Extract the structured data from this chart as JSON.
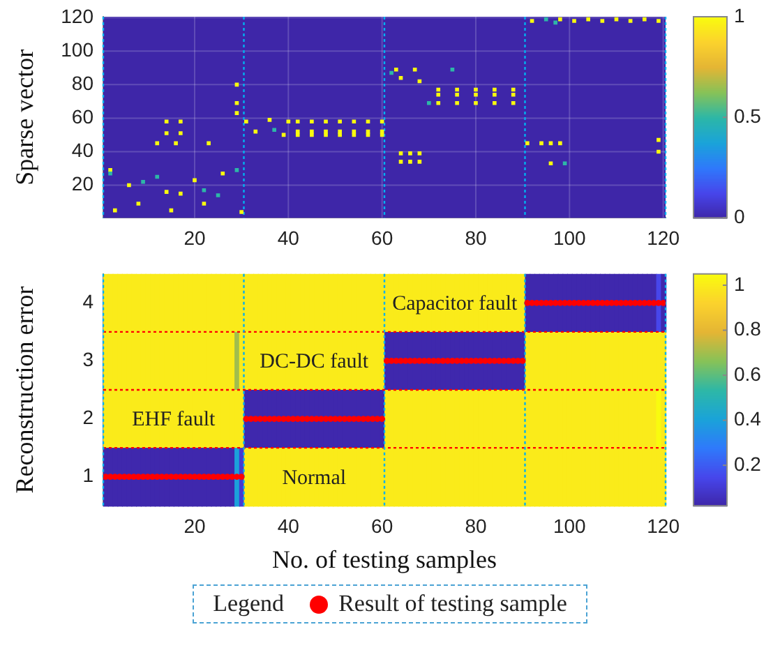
{
  "chart_data": [
    {
      "type": "scatter",
      "ylabel": "Sparse vector",
      "xlim": [
        0.5,
        120.5
      ],
      "ylim": [
        0.5,
        120.5
      ],
      "xticks": [
        20,
        40,
        60,
        80,
        100,
        120
      ],
      "yticks": [
        20,
        40,
        60,
        80,
        100,
        120
      ],
      "grid": true,
      "marker": "square",
      "clim": [
        0,
        1
      ],
      "cticks": [
        0,
        0.5,
        1
      ],
      "x": [
        14,
        17,
        14,
        17,
        12,
        16,
        23,
        29,
        29,
        29,
        2,
        2,
        6,
        9,
        12,
        14,
        17,
        20,
        22,
        26,
        29,
        3,
        8,
        15,
        22,
        30,
        25,
        31,
        33,
        36,
        37,
        39,
        40,
        42,
        45,
        48,
        51,
        54,
        57,
        60,
        42,
        45,
        48,
        51,
        54,
        57,
        60,
        42,
        45,
        48,
        51,
        54,
        57,
        60,
        63,
        67,
        64,
        68,
        75,
        62,
        64,
        66,
        68,
        64,
        66,
        68,
        72,
        76,
        80,
        84,
        88,
        72,
        76,
        80,
        84,
        88,
        70,
        72,
        76,
        80,
        84,
        88,
        92,
        95,
        98,
        101,
        104,
        107,
        110,
        113,
        116,
        119,
        97,
        91,
        94,
        96,
        98,
        96,
        99,
        119,
        119
      ],
      "values": [
        58,
        58,
        51,
        51,
        45,
        45,
        45,
        80,
        69,
        63,
        29,
        27,
        20,
        22,
        25,
        16,
        15,
        23,
        17,
        27,
        29,
        5,
        9,
        5,
        9,
        4,
        14,
        58,
        52,
        59,
        53,
        50,
        58,
        58,
        58,
        58,
        58,
        58,
        58,
        58,
        52,
        52,
        52,
        52,
        52,
        52,
        52,
        50,
        50,
        50,
        50,
        50,
        50,
        50,
        89,
        89,
        84,
        82,
        89,
        87,
        39,
        39,
        39,
        34,
        34,
        34,
        77,
        77,
        77,
        77,
        77,
        74,
        74,
        74,
        74,
        74,
        69,
        69,
        69,
        69,
        69,
        69,
        118,
        119,
        119,
        118,
        119,
        118,
        119,
        118,
        119,
        118,
        117,
        45,
        45,
        45,
        45,
        33,
        33,
        47,
        40
      ],
      "cvalues": [
        1,
        1,
        1,
        1,
        1,
        1,
        1,
        1,
        1,
        1,
        1,
        0.5,
        1,
        0.5,
        0.5,
        1,
        1,
        1,
        0.5,
        1,
        0.5,
        1,
        1,
        1,
        1,
        1,
        0.5,
        1,
        1,
        1,
        0.5,
        1,
        1,
        1,
        1,
        1,
        1,
        1,
        1,
        1,
        1,
        1,
        1,
        1,
        1,
        1,
        1,
        1,
        1,
        1,
        1,
        1,
        1,
        1,
        1,
        1,
        1,
        1,
        0.5,
        0.5,
        1,
        1,
        1,
        1,
        1,
        1,
        1,
        1,
        1,
        1,
        1,
        1,
        1,
        1,
        1,
        1,
        0.5,
        1,
        1,
        1,
        1,
        1,
        1,
        0.5,
        1,
        1,
        1,
        1,
        1,
        1,
        1,
        1,
        0.5,
        1,
        1,
        1,
        1,
        1,
        0.5,
        1,
        1
      ],
      "ref_lines": [
        {
          "axis": "x",
          "value": 0.5,
          "color": "#00b0f0",
          "line_style": "dotted"
        },
        {
          "axis": "x",
          "value": 30.5,
          "color": "#00b0f0",
          "line_style": "dotted"
        },
        {
          "axis": "x",
          "value": 60.5,
          "color": "#00b0f0",
          "line_style": "dotted"
        },
        {
          "axis": "x",
          "value": 90.5,
          "color": "#00b0f0",
          "line_style": "dotted"
        },
        {
          "axis": "x",
          "value": 120.5,
          "color": "#00b0f0",
          "line_style": "dotted"
        }
      ]
    },
    {
      "type": "heatmap",
      "xlabel": "No. of testing samples",
      "ylabel": "Reconstruction error",
      "legend_title": "Legend",
      "legend": "bottom",
      "x": [
        1,
        2,
        3,
        4,
        5,
        6,
        7,
        8,
        9,
        10,
        11,
        12,
        13,
        14,
        15,
        16,
        17,
        18,
        19,
        20,
        21,
        22,
        23,
        24,
        25,
        26,
        27,
        28,
        29,
        30,
        31,
        32,
        33,
        34,
        35,
        36,
        37,
        38,
        39,
        40,
        41,
        42,
        43,
        44,
        45,
        46,
        47,
        48,
        49,
        50,
        51,
        52,
        53,
        54,
        55,
        56,
        57,
        58,
        59,
        60,
        61,
        62,
        63,
        64,
        65,
        66,
        67,
        68,
        69,
        70,
        71,
        72,
        73,
        74,
        75,
        76,
        77,
        78,
        79,
        80,
        81,
        82,
        83,
        84,
        85,
        86,
        87,
        88,
        89,
        90,
        91,
        92,
        93,
        94,
        95,
        96,
        97,
        98,
        99,
        100,
        101,
        102,
        103,
        104,
        105,
        106,
        107,
        108,
        109,
        110,
        111,
        112,
        113,
        114,
        115,
        116,
        117,
        118,
        119,
        120
      ],
      "xlim": [
        0.5,
        120.5
      ],
      "xticks": [
        20,
        40,
        60,
        80,
        100,
        120
      ],
      "ylim": [
        0.5,
        4.5
      ],
      "yticks": [
        1,
        2,
        3,
        4
      ],
      "cells": [
        [
          1,
          1,
          1,
          1,
          1,
          1,
          1,
          1,
          1,
          1,
          1,
          1,
          1,
          1,
          1,
          1,
          1,
          1,
          1,
          1,
          1,
          1,
          1,
          1,
          1,
          1,
          1,
          1,
          1,
          1,
          1,
          1,
          1,
          1,
          1,
          1,
          1,
          1,
          1,
          1,
          1,
          1,
          1,
          1,
          1,
          1,
          1,
          1,
          1,
          1,
          1,
          1,
          1,
          1,
          1,
          1,
          1,
          1,
          1,
          1,
          1,
          1,
          1,
          1,
          1,
          1,
          1,
          1,
          1,
          1,
          1,
          1,
          1,
          1,
          1,
          1,
          1,
          1,
          1,
          1,
          1,
          1,
          1,
          1,
          1,
          1,
          1,
          1,
          1,
          1,
          0.03,
          0.03,
          0.03,
          0.03,
          0.03,
          0.03,
          0.03,
          0.03,
          0.03,
          0.03,
          0.03,
          0.03,
          0.03,
          0.03,
          0.03,
          0.03,
          0.03,
          0.03,
          0.03,
          0.03,
          0.03,
          0.03,
          0.03,
          0.03,
          0.03,
          0.03,
          0.03,
          0.03,
          0.15,
          0.03
        ],
        [
          1,
          1,
          1,
          1,
          1,
          1,
          1,
          1,
          1,
          1,
          1,
          1,
          1,
          1,
          1,
          1,
          1,
          1,
          1,
          1,
          1,
          1,
          1,
          1,
          1,
          1,
          1,
          1,
          0.7,
          1,
          1,
          1,
          1,
          1,
          1,
          1,
          1,
          1,
          1,
          1,
          1,
          1,
          1,
          1,
          1,
          1,
          1,
          1,
          1,
          1,
          1,
          1,
          1,
          1,
          1,
          1,
          1,
          1,
          1,
          1,
          0.03,
          0.03,
          0.03,
          0.03,
          0.03,
          0.03,
          0.03,
          0.03,
          0.03,
          0.03,
          0.03,
          0.03,
          0.03,
          0.03,
          0.03,
          0.03,
          0.03,
          0.03,
          0.03,
          0.03,
          0.03,
          0.03,
          0.03,
          0.03,
          0.03,
          0.03,
          0.03,
          0.03,
          0.03,
          0.03,
          1,
          1,
          1,
          1,
          1,
          1,
          1,
          1,
          1,
          1,
          1,
          1,
          1,
          1,
          1,
          1,
          1,
          1,
          1,
          1,
          1,
          1,
          1,
          1,
          1,
          1,
          1,
          1,
          1,
          1
        ],
        [
          1,
          1,
          1,
          1,
          1,
          1,
          1,
          1,
          1,
          1,
          1,
          1,
          1,
          1,
          1,
          1,
          1,
          1,
          1,
          1,
          1,
          1,
          1,
          1,
          1,
          1,
          1,
          1,
          1,
          1,
          0.03,
          0.03,
          0.03,
          0.03,
          0.03,
          0.03,
          0.03,
          0.03,
          0.03,
          0.03,
          0.03,
          0.03,
          0.03,
          0.03,
          0.03,
          0.03,
          0.03,
          0.03,
          0.03,
          0.03,
          0.03,
          0.03,
          0.03,
          0.03,
          0.03,
          0.03,
          0.03,
          0.03,
          0.03,
          0.03,
          1,
          1,
          1,
          1,
          1,
          1,
          1,
          1,
          1,
          1,
          1,
          1,
          1,
          1,
          1,
          1,
          1,
          1,
          1,
          1,
          1,
          1,
          1,
          1,
          1,
          1,
          1,
          1,
          1,
          1,
          1,
          1,
          1,
          1,
          1,
          1,
          1,
          1,
          1,
          1,
          1,
          1,
          1,
          1,
          1,
          1,
          1,
          1,
          1,
          1,
          1,
          1,
          1,
          1,
          1,
          1,
          1,
          1,
          1.05,
          1
        ],
        [
          0.03,
          0.03,
          0.03,
          0.03,
          0.03,
          0.03,
          0.03,
          0.03,
          0.03,
          0.03,
          0.03,
          0.03,
          0.03,
          0.03,
          0.03,
          0.03,
          0.03,
          0.03,
          0.03,
          0.03,
          0.03,
          0.03,
          0.03,
          0.03,
          0.03,
          0.03,
          0.03,
          0.03,
          0.4,
          0.1,
          1,
          1,
          1,
          1,
          1,
          1,
          1,
          1,
          1,
          1,
          1,
          1,
          1,
          1,
          1,
          1,
          1,
          1,
          1,
          1,
          1,
          1,
          1,
          1,
          1,
          1,
          1,
          1,
          1,
          1,
          1,
          1,
          1,
          1,
          1,
          1,
          1,
          1,
          1,
          1,
          1,
          1,
          1,
          1,
          1,
          1,
          1,
          1,
          1,
          1,
          1,
          1,
          1,
          1,
          1,
          1,
          1,
          1,
          1,
          1,
          1,
          1,
          1,
          1,
          1,
          1,
          1,
          1,
          1,
          1,
          1,
          1,
          1,
          1,
          1,
          1,
          1,
          1,
          1,
          1,
          1,
          1,
          1,
          1,
          1,
          1,
          1,
          1,
          1,
          1
        ]
      ],
      "clim": [
        0.02,
        1.05
      ],
      "cticks": [
        0.2,
        0.4,
        0.6,
        0.8,
        1
      ],
      "series": [
        {
          "type": "scatter",
          "name": "Result of testing sample",
          "color": "#ff0000",
          "values": [
            1,
            1,
            1,
            1,
            1,
            1,
            1,
            1,
            1,
            1,
            1,
            1,
            1,
            1,
            1,
            1,
            1,
            1,
            1,
            1,
            1,
            1,
            1,
            1,
            1,
            1,
            1,
            1,
            1,
            1,
            2,
            2,
            2,
            2,
            2,
            2,
            2,
            2,
            2,
            2,
            2,
            2,
            2,
            2,
            2,
            2,
            2,
            2,
            2,
            2,
            2,
            2,
            2,
            2,
            2,
            2,
            2,
            2,
            2,
            2,
            3,
            3,
            3,
            3,
            3,
            3,
            3,
            3,
            3,
            3,
            3,
            3,
            3,
            3,
            3,
            3,
            3,
            3,
            3,
            3,
            3,
            3,
            3,
            3,
            3,
            3,
            3,
            3,
            3,
            3,
            4,
            4,
            4,
            4,
            4,
            4,
            4,
            4,
            4,
            4,
            4,
            4,
            4,
            4,
            4,
            4,
            4,
            4,
            4,
            4,
            4,
            4,
            4,
            4,
            4,
            4,
            4,
            4,
            4,
            4
          ]
        }
      ],
      "annotations": [
        "EHF fault",
        "Normal",
        "DC-DC fault",
        "Capacitor fault"
      ],
      "ref_lines": [
        {
          "axis": "y",
          "value": 1.5,
          "color": "#ff0000",
          "line_style": "dotted"
        },
        {
          "axis": "y",
          "value": 2.5,
          "color": "#ff0000",
          "line_style": "dotted"
        },
        {
          "axis": "y",
          "value": 3.5,
          "color": "#ff0000",
          "line_style": "dotted"
        },
        {
          "axis": "x",
          "value": 0.5,
          "color": "#00b0f0",
          "line_style": "dotted"
        },
        {
          "axis": "x",
          "value": 30.5,
          "color": "#00b0f0",
          "line_style": "dotted"
        },
        {
          "axis": "x",
          "value": 60.5,
          "color": "#00b0f0",
          "line_style": "dotted"
        },
        {
          "axis": "x",
          "value": 90.5,
          "color": "#00b0f0",
          "line_style": "dotted"
        },
        {
          "axis": "x",
          "value": 120.5,
          "color": "#00b0f0",
          "line_style": "dotted"
        }
      ]
    }
  ]
}
